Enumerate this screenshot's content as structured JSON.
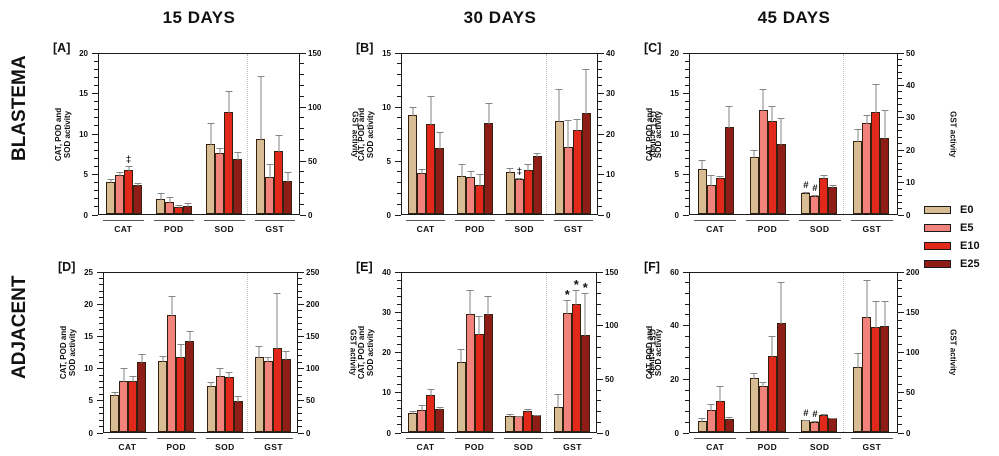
{
  "figure": {
    "column_headers": [
      "15 DAYS",
      "30 DAYS",
      "45 DAYS"
    ],
    "row_labels": [
      "BLASTEMA",
      "ADJACENT"
    ]
  },
  "legend": {
    "items": [
      {
        "label": "E0",
        "color": "#D7BC94"
      },
      {
        "label": "E5",
        "color": "#F2837C"
      },
      {
        "label": "E10",
        "color": "#E2271B"
      },
      {
        "label": "E25",
        "color": "#8E1D17"
      }
    ]
  },
  "chart_data": {
    "type": "bar",
    "categories": [
      "CAT",
      "POD",
      "SOD",
      "GST"
    ],
    "series_names": [
      "E0",
      "E5",
      "E10",
      "E25"
    ],
    "series_colors": [
      "#D7BC94",
      "#F2837C",
      "#E2271B",
      "#8E1D17"
    ],
    "notes": "CAT/POD/SOD values on left axis units; GST values on right axis units; errors are upper SD bars; marks are significance symbols shown above bars",
    "panels": [
      {
        "id": "[A]",
        "row": "BLASTEMA",
        "column": "15 DAYS",
        "left_axis": {
          "label": "CAT, POD and\nSOD activity",
          "max": 20,
          "ticks": [
            0,
            5,
            10,
            15,
            20
          ]
        },
        "right_axis": {
          "label": "GST activity",
          "max": 150,
          "ticks": [
            0,
            50,
            100,
            150
          ]
        },
        "groups": [
          {
            "name": "CAT",
            "axis": "left",
            "values": [
              4.0,
              4.8,
              5.4,
              3.6
            ],
            "errors": [
              0.4,
              0.5,
              0.6,
              0.3
            ],
            "marks": [
              "",
              "",
              "‡",
              ""
            ]
          },
          {
            "name": "POD",
            "axis": "left",
            "values": [
              1.9,
              1.5,
              0.9,
              1.0
            ],
            "errors": [
              0.8,
              0.7,
              0.3,
              0.5
            ],
            "marks": [
              "",
              "",
              "",
              ""
            ]
          },
          {
            "name": "SOD",
            "axis": "left",
            "values": [
              8.7,
              7.5,
              12.6,
              6.8
            ],
            "errors": [
              2.6,
              0.8,
              2.7,
              1.0
            ],
            "marks": [
              "",
              "",
              "",
              ""
            ]
          },
          {
            "name": "GST",
            "axis": "right",
            "values": [
              69,
              34,
              58,
              31
            ],
            "errors": [
              60,
              13,
              16,
              9
            ],
            "marks": [
              "",
              "",
              "",
              ""
            ]
          }
        ]
      },
      {
        "id": "[B]",
        "row": "BLASTEMA",
        "column": "30 DAYS",
        "left_axis": {
          "label": "CAT, POD and\nSOD activity",
          "max": 15,
          "ticks": [
            0,
            5,
            10,
            15
          ]
        },
        "right_axis": {
          "label": "GST activity",
          "max": 40,
          "ticks": [
            0,
            10,
            20,
            30,
            40
          ]
        },
        "groups": [
          {
            "name": "CAT",
            "axis": "left",
            "values": [
              9.2,
              3.8,
              8.3,
              6.1
            ],
            "errors": [
              0.8,
              0.5,
              2.7,
              1.6
            ],
            "marks": [
              "",
              "",
              "",
              ""
            ]
          },
          {
            "name": "POD",
            "axis": "left",
            "values": [
              3.5,
              3.4,
              2.7,
              8.4
            ],
            "errors": [
              1.2,
              0.7,
              1.1,
              2.0
            ],
            "marks": [
              "",
              "",
              "",
              ""
            ]
          },
          {
            "name": "SOD",
            "axis": "left",
            "values": [
              3.9,
              3.2,
              4.1,
              5.4
            ],
            "errors": [
              0.5,
              0.2,
              0.6,
              0.3
            ],
            "marks": [
              "",
              "‡",
              "",
              ""
            ]
          },
          {
            "name": "GST",
            "axis": "right",
            "values": [
              23,
              16.5,
              20.8,
              25
            ],
            "errors": [
              8,
              7,
              3,
              11
            ],
            "marks": [
              "",
              "",
              "",
              ""
            ]
          }
        ]
      },
      {
        "id": "[C]",
        "row": "BLASTEMA",
        "column": "45 DAYS",
        "left_axis": {
          "label": "CAT, POD and\nSOD activity",
          "max": 20,
          "ticks": [
            0,
            5,
            10,
            15,
            20
          ]
        },
        "right_axis": {
          "label": "GST activity",
          "max": 50,
          "ticks": [
            0,
            10,
            20,
            30,
            40,
            50
          ]
        },
        "groups": [
          {
            "name": "CAT",
            "axis": "left",
            "values": [
              5.5,
              3.6,
              4.5,
              10.8
            ],
            "errors": [
              1.3,
              1.3,
              0.3,
              2.6
            ],
            "marks": [
              "",
              "",
              "",
              ""
            ]
          },
          {
            "name": "POD",
            "axis": "left",
            "values": [
              7.1,
              12.9,
              11.5,
              8.7
            ],
            "errors": [
              0.9,
              2.7,
              1.9,
              3.3
            ],
            "marks": [
              "",
              "",
              "",
              ""
            ]
          },
          {
            "name": "SOD",
            "axis": "left",
            "values": [
              2.6,
              2.2,
              4.4,
              3.3
            ],
            "errors": [
              0.2,
              0.3,
              0.5,
              0.4
            ],
            "marks": [
              "#",
              "#",
              "",
              ""
            ]
          },
          {
            "name": "GST",
            "axis": "right",
            "values": [
              22.5,
              28,
              31.5,
              23.5
            ],
            "errors": [
              4,
              3,
              9,
              9
            ],
            "marks": [
              "",
              "",
              "",
              ""
            ]
          }
        ]
      },
      {
        "id": "[D]",
        "row": "ADJACENT",
        "column": "15 DAYS",
        "left_axis": {
          "label": "CAT, POD and\nSOD activity",
          "max": 25,
          "ticks": [
            0,
            5,
            10,
            15,
            20,
            25
          ]
        },
        "right_axis": {
          "label": "GST activity",
          "max": 250,
          "ticks": [
            0,
            50,
            100,
            150,
            200,
            250
          ]
        },
        "groups": [
          {
            "name": "CAT",
            "axis": "left",
            "values": [
              5.7,
              7.9,
              7.9,
              10.9
            ],
            "errors": [
              0.7,
              2.2,
              0.9,
              1.4
            ],
            "marks": [
              "",
              "",
              "",
              ""
            ]
          },
          {
            "name": "POD",
            "axis": "left",
            "values": [
              11.1,
              18.2,
              11.7,
              14.1
            ],
            "errors": [
              0.8,
              3.1,
              2.1,
              1.8
            ],
            "marks": [
              "",
              "",
              "",
              ""
            ]
          },
          {
            "name": "SOD",
            "axis": "left",
            "values": [
              7.1,
              8.7,
              8.6,
              4.8
            ],
            "errors": [
              0.9,
              1.4,
              0.9,
              0.9
            ],
            "marks": [
              "",
              "",
              "",
              ""
            ]
          },
          {
            "name": "GST",
            "axis": "right",
            "values": [
              116,
              110,
              130,
              114
            ],
            "errors": [
              19,
              8,
              87,
              14
            ],
            "marks": [
              "",
              "",
              "",
              ""
            ]
          }
        ]
      },
      {
        "id": "[E]",
        "row": "ADJACENT",
        "column": "30 DAYS",
        "left_axis": {
          "label": "CAT, POD and\nSOD activity",
          "max": 40,
          "ticks": [
            0,
            10,
            20,
            30,
            40
          ]
        },
        "right_axis": {
          "label": "GST activity",
          "max": 150,
          "ticks": [
            0,
            50,
            100,
            150
          ]
        },
        "groups": [
          {
            "name": "CAT",
            "axis": "left",
            "values": [
              4.7,
              5.4,
              9.1,
              5.6
            ],
            "errors": [
              0.7,
              1.6,
              1.9,
              0.8
            ],
            "marks": [
              "",
              "",
              "",
              ""
            ]
          },
          {
            "name": "POD",
            "axis": "left",
            "values": [
              17.4,
              29.2,
              24.3,
              29.4
            ],
            "errors": [
              3.4,
              6.3,
              4.7,
              4.6
            ],
            "marks": [
              "",
              "",
              "",
              ""
            ]
          },
          {
            "name": "SOD",
            "axis": "left",
            "values": [
              4.1,
              3.9,
              5.1,
              4.3
            ],
            "errors": [
              0.7,
              0.4,
              0.8,
              0.3
            ],
            "marks": [
              "",
              "",
              "",
              ""
            ]
          },
          {
            "name": "GST",
            "axis": "right",
            "values": [
              23,
              111,
              119,
              90
            ],
            "errors": [
              13,
              13,
              14,
              40
            ],
            "marks": [
              "",
              "*",
              "*",
              "*"
            ]
          }
        ]
      },
      {
        "id": "[F]",
        "row": "ADJACENT",
        "column": "45 DAYS",
        "left_axis": {
          "label": "CAT, POD and\nSOD activity",
          "max": 60,
          "ticks": [
            0,
            20,
            40,
            60
          ]
        },
        "right_axis": {
          "label": "GST activity",
          "max": 200,
          "ticks": [
            0,
            50,
            100,
            150,
            200
          ]
        },
        "groups": [
          {
            "name": "CAT",
            "axis": "left",
            "values": [
              4.2,
              8.2,
              11.7,
              4.9
            ],
            "errors": [
              1.3,
              2.5,
              6.0,
              1.2
            ],
            "marks": [
              "",
              "",
              "",
              ""
            ]
          },
          {
            "name": "POD",
            "axis": "left",
            "values": [
              20.2,
              17.3,
              28.5,
              40.7
            ],
            "errors": [
              2.2,
              1.7,
              7.5,
              15.5
            ],
            "marks": [
              "",
              "",
              "",
              ""
            ]
          },
          {
            "name": "SOD",
            "axis": "left",
            "values": [
              4.3,
              3.9,
              6.5,
              5.1
            ],
            "errors": [
              0.6,
              0.7,
              0.5,
              0.6
            ],
            "marks": [
              "#",
              "#",
              "",
              ""
            ]
          },
          {
            "name": "GST",
            "axis": "right",
            "values": [
              81,
              143,
              131,
              132
            ],
            "errors": [
              18,
              47,
              33,
              32
            ],
            "marks": [
              "",
              "",
              "",
              ""
            ]
          }
        ]
      }
    ]
  }
}
